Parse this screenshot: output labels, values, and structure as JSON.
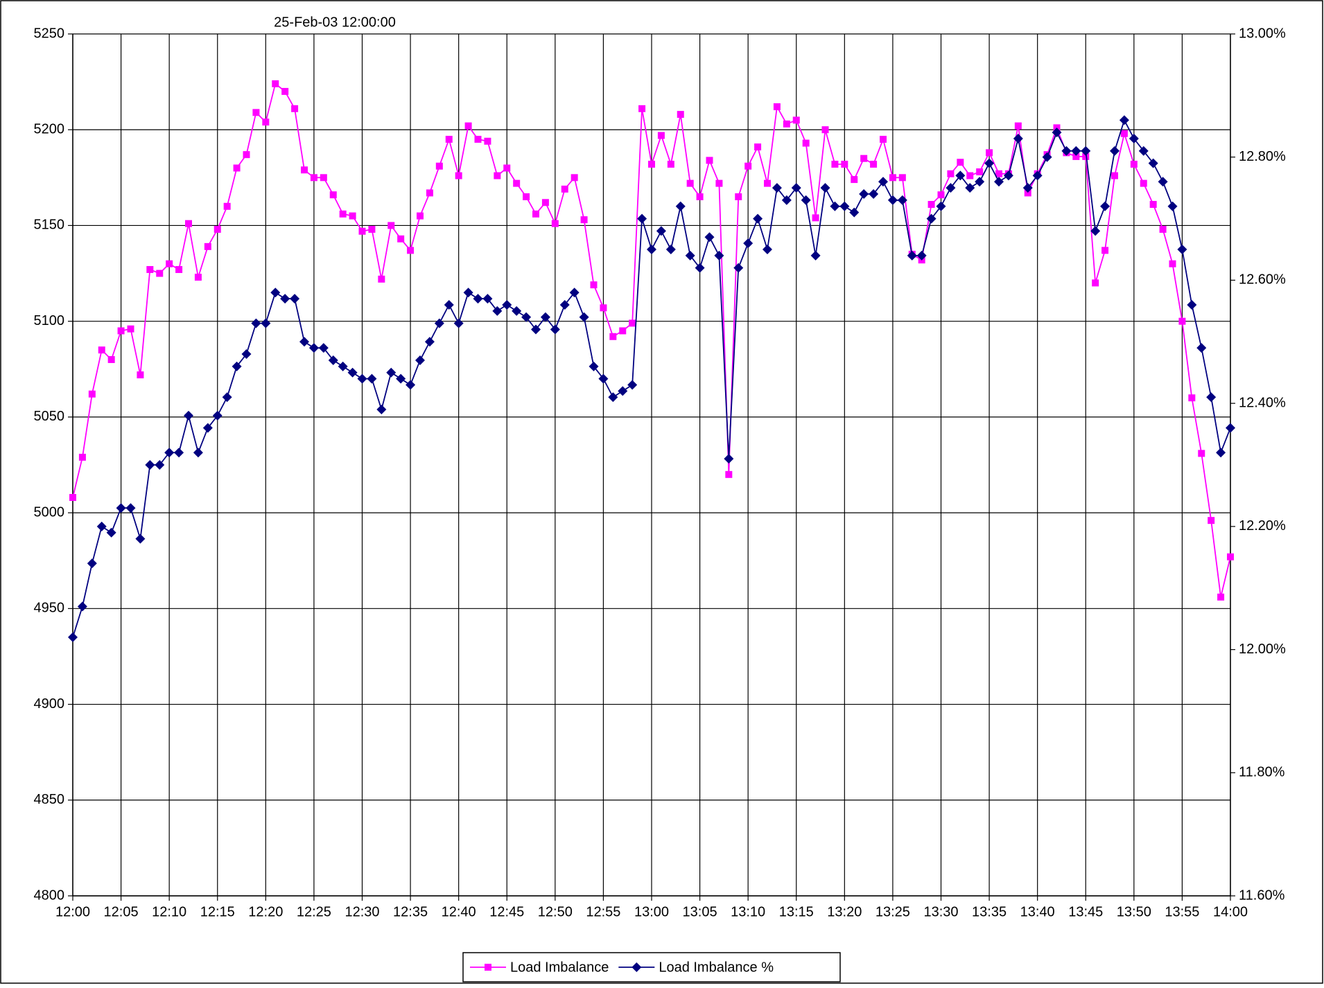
{
  "chart_data": {
    "type": "line",
    "title": "25-Feb-03 12:00:00",
    "categories": [
      "12:00",
      null,
      null,
      null,
      null,
      "12:05",
      null,
      null,
      null,
      null,
      "12:10",
      null,
      null,
      null,
      null,
      "12:15",
      null,
      null,
      null,
      null,
      "12:20",
      null,
      null,
      null,
      null,
      "12:25",
      null,
      null,
      null,
      null,
      "12:30",
      null,
      null,
      null,
      null,
      "12:35",
      null,
      null,
      null,
      null,
      "12:40",
      null,
      null,
      null,
      null,
      "12:45",
      null,
      null,
      null,
      null,
      "12:50",
      null,
      null,
      null,
      null,
      "12:55",
      null,
      null,
      null,
      null,
      "13:00",
      null,
      null,
      null,
      null,
      "13:05",
      null,
      null,
      null,
      null,
      "13:10",
      null,
      null,
      null,
      null,
      "13:15",
      null,
      null,
      null,
      null,
      "13:20",
      null,
      null,
      null,
      null,
      "13:25",
      null,
      null,
      null,
      null,
      "13:30",
      null,
      null,
      null,
      null,
      "13:35",
      null,
      null,
      null,
      null,
      "13:40",
      null,
      null,
      null,
      null,
      "13:45",
      null,
      null,
      null,
      null,
      "13:50",
      null,
      null,
      null,
      null,
      "13:55",
      null,
      null,
      null,
      null,
      "14:00"
    ],
    "series": [
      {
        "name": "Load Imbalance",
        "color": "#ff00ff",
        "marker": "square",
        "values": [
          5008,
          5029,
          5062,
          5085,
          5080,
          5095,
          5096,
          5072,
          5127,
          5125,
          5130,
          5127,
          5151,
          5123,
          5139,
          5148,
          5160,
          5180,
          5187,
          5209,
          5204,
          5224,
          5220,
          5211,
          5179,
          5175,
          5175,
          5166,
          5156,
          5155,
          5147,
          5148,
          5122,
          5150,
          5143,
          5137,
          5155,
          5167,
          5181,
          5195,
          5176,
          5202,
          5195,
          5194,
          5176,
          5180,
          5172,
          5165,
          5156,
          5162,
          5151,
          5169,
          5175,
          5153,
          5119,
          5107,
          5092,
          5095,
          5099,
          5211,
          5182,
          5197,
          5182,
          5208,
          5172,
          5165,
          5184,
          5172,
          5020,
          5165,
          5181,
          5191,
          5172,
          5212,
          5203,
          5205,
          5193,
          5154,
          5200,
          5182,
          5182,
          5174,
          5185,
          5182,
          5195,
          5175,
          5175,
          5135,
          5132,
          5161,
          5166,
          5177,
          5183,
          5176,
          5178,
          5188,
          5177,
          5177,
          5202,
          5167,
          5177,
          5187,
          5201,
          5188,
          5186,
          5186,
          5120,
          5137,
          5176,
          5198,
          5182,
          5172,
          5161,
          5148,
          5130,
          5100,
          5060,
          5031,
          4996,
          4956,
          4977
        ]
      },
      {
        "name": "Load Imbalance %",
        "color": "#000080",
        "marker": "diamond",
        "axis": "y2",
        "values": [
          12.02,
          12.07,
          12.14,
          12.2,
          12.19,
          12.23,
          12.23,
          12.18,
          12.3,
          12.3,
          12.32,
          12.32,
          12.38,
          12.32,
          12.36,
          12.38,
          12.41,
          12.46,
          12.48,
          12.53,
          12.53,
          12.58,
          12.57,
          12.57,
          12.5,
          12.49,
          12.49,
          12.47,
          12.46,
          12.45,
          12.44,
          12.44,
          12.39,
          12.45,
          12.44,
          12.43,
          12.47,
          12.5,
          12.53,
          12.56,
          12.53,
          12.58,
          12.57,
          12.57,
          12.55,
          12.56,
          12.55,
          12.54,
          12.52,
          12.54,
          12.52,
          12.56,
          12.58,
          12.54,
          12.46,
          12.44,
          12.41,
          12.42,
          12.43,
          12.7,
          12.65,
          12.68,
          12.65,
          12.72,
          12.64,
          12.62,
          12.67,
          12.64,
          12.31,
          12.62,
          12.66,
          12.7,
          12.65,
          12.75,
          12.73,
          12.75,
          12.73,
          12.64,
          12.75,
          12.72,
          12.72,
          12.71,
          12.74,
          12.74,
          12.76,
          12.73,
          12.73,
          12.64,
          12.64,
          12.7,
          12.72,
          12.75,
          12.77,
          12.75,
          12.76,
          12.79,
          12.76,
          12.77,
          12.83,
          12.75,
          12.77,
          12.8,
          12.84,
          12.81,
          12.81,
          12.81,
          12.68,
          12.72,
          12.81,
          12.86,
          12.83,
          12.81,
          12.79,
          12.76,
          12.72,
          12.65,
          12.56,
          12.49,
          12.41,
          12.32,
          12.36
        ]
      }
    ],
    "ylim": [
      4800,
      5250
    ],
    "yticks": [
      4800,
      4850,
      4900,
      4950,
      5000,
      5050,
      5100,
      5150,
      5200,
      5250
    ],
    "y2lim": [
      11.6,
      13.0
    ],
    "y2ticks": [
      {
        "value": 11.6,
        "label": "11.60%"
      },
      {
        "value": 11.8,
        "label": "11.80%"
      },
      {
        "value": 12.0,
        "label": "12.00%"
      },
      {
        "value": 12.2,
        "label": "12.20%"
      },
      {
        "value": 12.4,
        "label": "12.40%"
      },
      {
        "value": 12.6,
        "label": "12.60%"
      },
      {
        "value": 12.8,
        "label": "12.80%"
      },
      {
        "value": 13.0,
        "label": "13.00%"
      }
    ],
    "grid": true,
    "legend": "bottom"
  }
}
